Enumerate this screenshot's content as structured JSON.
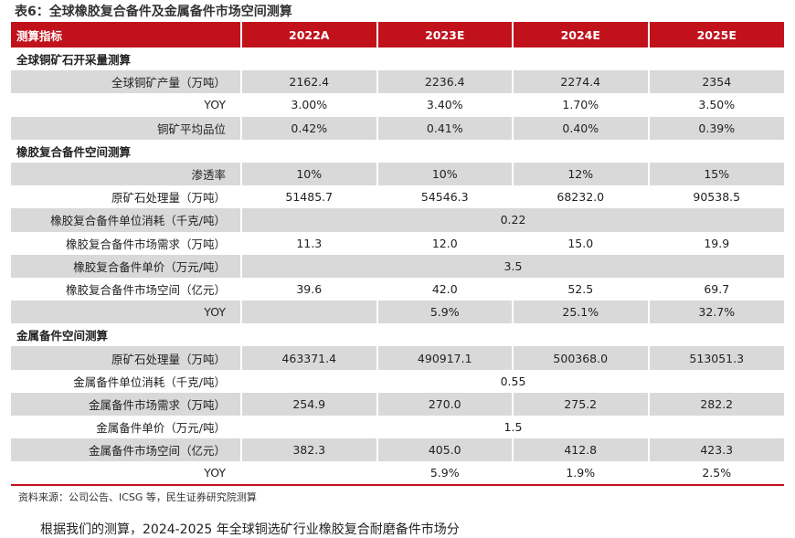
{
  "title": "表6：全球橡胶复合备件及金属备件市场空间测算",
  "header": [
    "测算指标",
    "2022A",
    "2023E",
    "2024E",
    "2025E"
  ],
  "sections": [
    {
      "name": "全球铜矿石开采量测算",
      "rows": [
        {
          "label": "全球铜矿产量（万吨）",
          "values": [
            "2162.4",
            "2236.4",
            "2274.4",
            "2354"
          ]
        },
        {
          "label": "YOY",
          "values": [
            "3.00%",
            "3.40%",
            "1.70%",
            "3.50%"
          ]
        },
        {
          "label": "铜矿平均品位",
          "values": [
            "0.42%",
            "0.41%",
            "0.40%",
            "0.39%"
          ]
        }
      ]
    },
    {
      "name": "橡胶复合备件空间测算",
      "rows": [
        {
          "label": "渗透率",
          "values": [
            "10%",
            "10%",
            "12%",
            "15%"
          ]
        },
        {
          "label": "原矿石处理量（万吨）",
          "values": [
            "51485.7",
            "54546.3",
            "68232.0",
            "90538.5"
          ]
        },
        {
          "label": "橡胶复合备件单位消耗（千克/吨）",
          "merged": "0.22"
        },
        {
          "label": "橡胶复合备件市场需求（万吨）",
          "values": [
            "11.3",
            "12.0",
            "15.0",
            "19.9"
          ]
        },
        {
          "label": "橡胶复合备件单价（万元/吨）",
          "merged": "3.5"
        },
        {
          "label": "橡胶复合备件市场空间（亿元）",
          "values": [
            "39.6",
            "42.0",
            "52.5",
            "69.7"
          ]
        },
        {
          "label": "YOY",
          "values": [
            "",
            "5.9%",
            "25.1%",
            "32.7%"
          ]
        }
      ]
    },
    {
      "name": "金属备件空间测算",
      "rows": [
        {
          "label": "原矿石处理量（万吨）",
          "values": [
            "463371.4",
            "490917.1",
            "500368.0",
            "513051.3"
          ]
        },
        {
          "label": "金属备件单位消耗（千克/吨）",
          "merged": "0.55"
        },
        {
          "label": "金属备件市场需求（万吨）",
          "values": [
            "254.9",
            "270.0",
            "275.2",
            "282.2"
          ]
        },
        {
          "label": "金属备件单价（万元/吨）",
          "merged": "1.5"
        },
        {
          "label": "金属备件市场空间（亿元）",
          "values": [
            "382.3",
            "405.0",
            "412.8",
            "423.3"
          ]
        },
        {
          "label": "YOY",
          "values": [
            "",
            "5.9%",
            "1.9%",
            "2.5%"
          ]
        }
      ]
    }
  ],
  "source": "资料来源：公司公告、ICSG 等，民生证券研究院测算",
  "body_text": "根据我们的测算，2024-2025 年全球铜选矿行业橡胶复合耐磨备件市场分"
}
